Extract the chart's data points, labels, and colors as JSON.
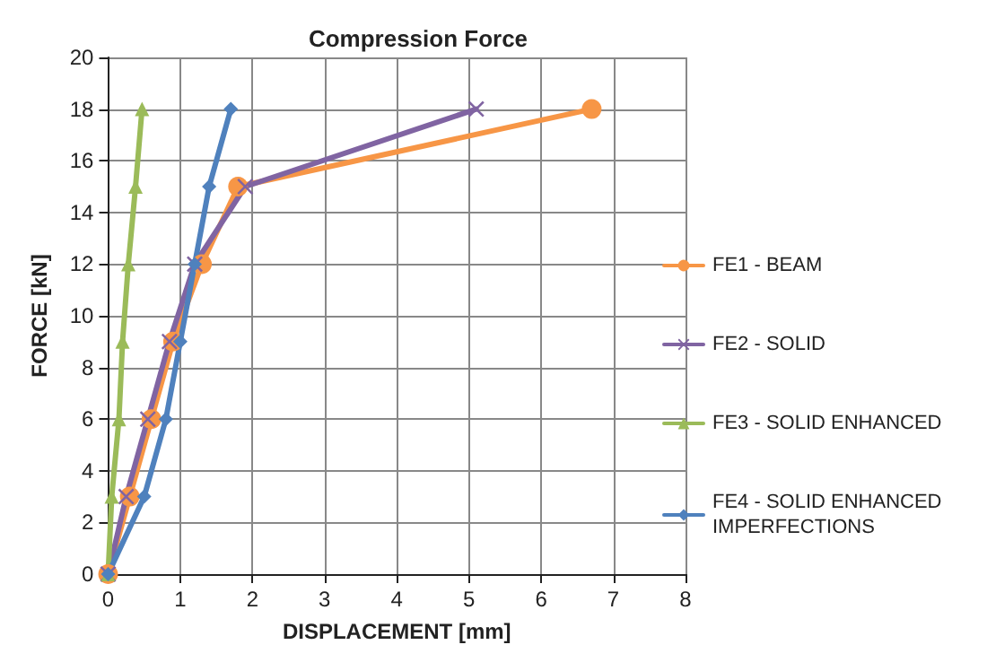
{
  "chart_data": {
    "type": "line",
    "title": "Compression Force",
    "xlabel": "DISPLACEMENT [mm]",
    "ylabel": "FORCE [kN]",
    "xlim": [
      0,
      8
    ],
    "xticks": [
      0,
      1,
      2,
      3,
      4,
      5,
      6,
      7,
      8
    ],
    "ylim": [
      0,
      20
    ],
    "yticks": [
      0,
      2,
      4,
      6,
      8,
      10,
      12,
      14,
      16,
      18,
      20
    ],
    "grid": true,
    "legend": "right",
    "line_style": "solid",
    "series": [
      {
        "name": "FE1 - BEAM",
        "color": "#f79646",
        "marker": "circle",
        "x": [
          0,
          0.3,
          0.6,
          0.9,
          1.3,
          1.8,
          6.7
        ],
        "values": [
          0,
          3,
          6,
          9,
          12,
          15,
          18
        ]
      },
      {
        "name": "FE2 - SOLID",
        "color": "#8064a2",
        "marker": "cross",
        "x": [
          0,
          0.25,
          0.55,
          0.85,
          1.2,
          1.9,
          5.1
        ],
        "values": [
          0,
          3,
          6,
          9,
          12,
          15,
          18
        ]
      },
      {
        "name": "FE3 - SOLID ENHANCED",
        "color": "#9bbb59",
        "marker": "triangle",
        "x": [
          0,
          0.05,
          0.15,
          0.2,
          0.28,
          0.38,
          0.47
        ],
        "values": [
          0,
          3,
          6,
          9,
          12,
          15,
          18
        ]
      },
      {
        "name": "FE4 - SOLID ENHANCED IMPERFECTIONS",
        "color": "#4f81bd",
        "marker": "diamond",
        "x": [
          0,
          0.5,
          0.8,
          1.0,
          1.2,
          1.4,
          1.7
        ],
        "values": [
          0,
          3,
          6,
          9,
          12,
          15,
          18
        ]
      }
    ]
  }
}
